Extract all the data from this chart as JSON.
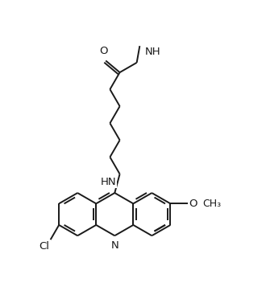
{
  "background_color": "#ffffff",
  "line_color": "#1a1a1a",
  "line_width": 1.4,
  "font_size": 9.5,
  "figsize": [
    3.3,
    3.72
  ],
  "dpi": 100,
  "xlim": [
    0,
    10
  ],
  "ylim": [
    0,
    11.27
  ]
}
